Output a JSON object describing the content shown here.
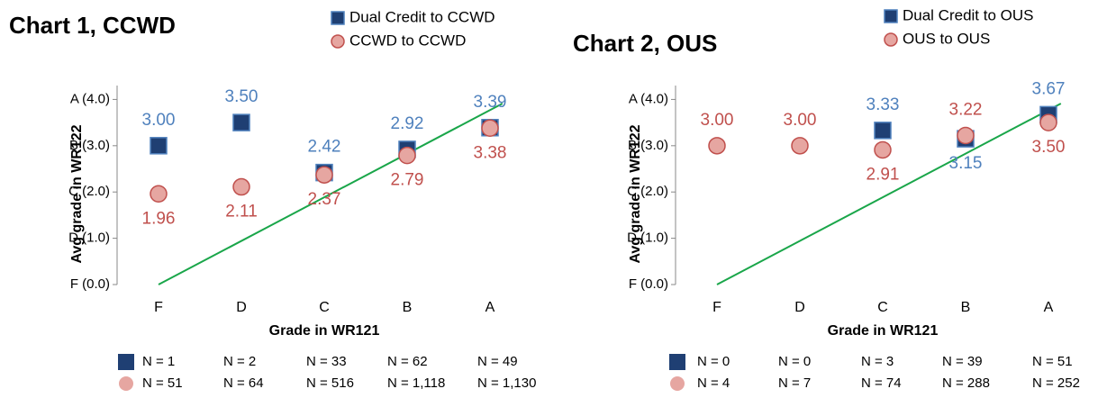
{
  "chart_data": [
    {
      "type": "scatter",
      "title": "Chart 1, CCWD",
      "x_label": "Grade in WR121",
      "y_label": "Avg grade in WR122",
      "categories": [
        "F",
        "D",
        "C",
        "B",
        "A"
      ],
      "ylim": [
        0,
        4.3
      ],
      "yticks": [
        {
          "value": 0,
          "label": "F (0.0)"
        },
        {
          "value": 1,
          "label": "D (1.0)"
        },
        {
          "value": 2,
          "label": "C (2.0)"
        },
        {
          "value": 3,
          "label": "B (3.0)"
        },
        {
          "value": 4,
          "label": "A (4.0)"
        }
      ],
      "series": [
        {
          "name": "Dual Credit to CCWD",
          "marker": "square",
          "color": "#1f3f73",
          "label_color": "#4f81bd",
          "values": [
            3.0,
            3.5,
            2.42,
            2.92,
            3.39
          ],
          "value_labels": [
            "3.00",
            "3.50",
            "2.42",
            "2.92",
            "3.39"
          ],
          "n_labels": [
            "N = 1",
            "N = 2",
            "N = 33",
            "N = 62",
            "N = 49"
          ]
        },
        {
          "name": "CCWD to CCWD",
          "marker": "circle",
          "color": "#e6a6a1",
          "label_color": "#c0504d",
          "values": [
            1.96,
            2.11,
            2.37,
            2.79,
            3.38
          ],
          "value_labels": [
            "1.96",
            "2.11",
            "2.37",
            "2.79",
            "3.38"
          ],
          "n_labels": [
            "N = 51",
            "N = 64",
            "N = 516",
            "N = 1,118",
            "N = 1,130"
          ]
        }
      ]
    },
    {
      "type": "scatter",
      "title": "Chart 2, OUS",
      "x_label": "Grade in WR121",
      "y_label": "Avg grade in WR122",
      "categories": [
        "F",
        "D",
        "C",
        "B",
        "A"
      ],
      "ylim": [
        0,
        4.3
      ],
      "yticks": [
        {
          "value": 0,
          "label": "F (0.0)"
        },
        {
          "value": 1,
          "label": "D (1.0)"
        },
        {
          "value": 2,
          "label": "C (2.0)"
        },
        {
          "value": 3,
          "label": "B (3.0)"
        },
        {
          "value": 4,
          "label": "A (4.0)"
        }
      ],
      "series": [
        {
          "name": "Dual Credit to OUS",
          "marker": "square",
          "color": "#1f3f73",
          "label_color": "#4f81bd",
          "values": [
            null,
            null,
            3.33,
            3.15,
            3.67
          ],
          "value_labels": [
            null,
            null,
            "3.33",
            "3.15",
            "3.67"
          ],
          "n_labels": [
            "N = 0",
            "N = 0",
            "N = 3",
            "N = 39",
            "N = 51"
          ]
        },
        {
          "name": "OUS to OUS",
          "marker": "circle",
          "color": "#e6a6a1",
          "label_color": "#c0504d",
          "values": [
            3.0,
            3.0,
            2.91,
            3.22,
            3.5
          ],
          "value_labels": [
            "3.00",
            "3.00",
            "2.91",
            "3.22",
            "3.50"
          ],
          "n_labels": [
            "N = 4",
            "N = 7",
            "N = 74",
            "N = 288",
            "N = 252"
          ]
        }
      ]
    }
  ]
}
